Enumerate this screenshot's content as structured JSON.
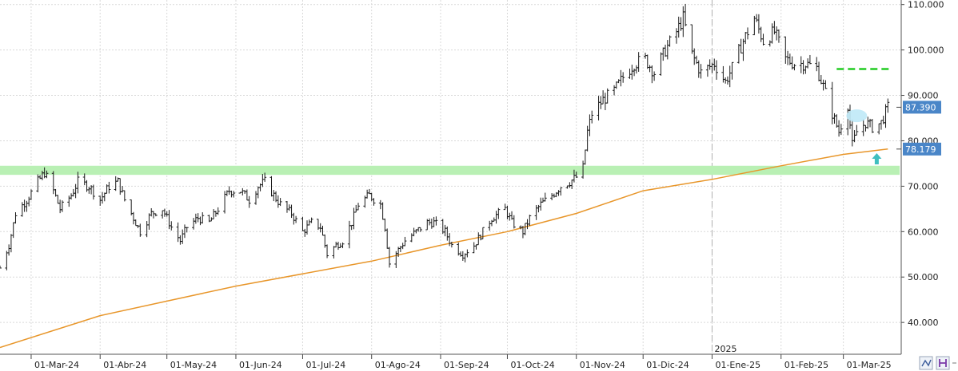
{
  "colors": {
    "background": "#ffffff",
    "grid": "#d9d9d9",
    "bars": "#1a1a1a",
    "ma_line": "#e8962a",
    "support_zone": "#b9f0b4",
    "resistance_line": "#22cc22",
    "tag_bg": "#4a86c8",
    "arrow": "#3fbfbf",
    "highlight": "#bfe9f7"
  },
  "chart_data": {
    "type": "ohlc",
    "title": "",
    "xlabel": "",
    "ylabel": "",
    "ylim": [
      33,
      111
    ],
    "yticks": [
      "110.000",
      "100.000",
      "90.000",
      "80.000",
      "70.000",
      "60.000",
      "50.000",
      "40.000"
    ],
    "x_start": "2024-02-16",
    "x_end": "2025-03-27",
    "x_ticks": [
      {
        "date": "2024-03-01",
        "label": "01-Mar-24"
      },
      {
        "date": "2024-04-01",
        "label": "01-Abr-24"
      },
      {
        "date": "2024-05-01",
        "label": "01-May-24"
      },
      {
        "date": "2024-06-01",
        "label": "01-Jun-24"
      },
      {
        "date": "2024-07-01",
        "label": "01-Jul-24"
      },
      {
        "date": "2024-08-01",
        "label": "01-Ago-24"
      },
      {
        "date": "2024-09-01",
        "label": "01-Sep-24"
      },
      {
        "date": "2024-10-01",
        "label": "01-Oct-24"
      },
      {
        "date": "2024-11-01",
        "label": "01-Nov-24"
      },
      {
        "date": "2024-12-01",
        "label": "01-Dic-24"
      },
      {
        "date": "2025-01-01",
        "label": "01-Ene-25"
      },
      {
        "date": "2025-02-01",
        "label": "01-Feb-25"
      },
      {
        "date": "2025-03-01",
        "label": "01-Mar-25"
      }
    ],
    "year_marker": {
      "date": "2025-01-01",
      "label": "2025"
    },
    "price_path": [
      [
        "2024-02-16",
        52
      ],
      [
        "2024-02-20",
        57
      ],
      [
        "2024-02-23",
        64
      ],
      [
        "2024-02-28",
        67
      ],
      [
        "2024-03-04",
        71
      ],
      [
        "2024-03-07",
        73
      ],
      [
        "2024-03-11",
        69
      ],
      [
        "2024-03-14",
        65
      ],
      [
        "2024-03-19",
        68
      ],
      [
        "2024-03-22",
        71
      ],
      [
        "2024-03-27",
        70
      ],
      [
        "2024-04-01",
        67
      ],
      [
        "2024-04-05",
        70
      ],
      [
        "2024-04-09",
        71
      ],
      [
        "2024-04-12",
        67
      ],
      [
        "2024-04-16",
        63
      ],
      [
        "2024-04-19",
        60
      ],
      [
        "2024-04-24",
        64
      ],
      [
        "2024-04-29",
        65
      ],
      [
        "2024-05-03",
        61
      ],
      [
        "2024-05-07",
        58
      ],
      [
        "2024-05-10",
        61
      ],
      [
        "2024-05-15",
        63
      ],
      [
        "2024-05-20",
        62
      ],
      [
        "2024-05-24",
        65
      ],
      [
        "2024-05-29",
        69
      ],
      [
        "2024-06-03",
        69
      ],
      [
        "2024-06-07",
        67
      ],
      [
        "2024-06-11",
        70
      ],
      [
        "2024-06-14",
        71
      ],
      [
        "2024-06-18",
        68
      ],
      [
        "2024-06-21",
        66
      ],
      [
        "2024-06-26",
        64
      ],
      [
        "2024-07-01",
        60
      ],
      [
        "2024-07-05",
        62
      ],
      [
        "2024-07-09",
        61
      ],
      [
        "2024-07-12",
        55
      ],
      [
        "2024-07-16",
        57
      ],
      [
        "2024-07-19",
        58
      ],
      [
        "2024-07-23",
        62
      ],
      [
        "2024-07-26",
        66
      ],
      [
        "2024-07-31",
        68
      ],
      [
        "2024-08-05",
        66
      ],
      [
        "2024-08-07",
        61
      ],
      [
        "2024-08-09",
        53
      ],
      [
        "2024-08-13",
        56
      ],
      [
        "2024-08-16",
        58
      ],
      [
        "2024-08-21",
        60
      ],
      [
        "2024-08-26",
        62
      ],
      [
        "2024-08-29",
        62
      ],
      [
        "2024-09-03",
        60
      ],
      [
        "2024-09-06",
        57
      ],
      [
        "2024-09-11",
        55
      ],
      [
        "2024-09-16",
        57
      ],
      [
        "2024-09-20",
        60
      ],
      [
        "2024-09-24",
        63
      ],
      [
        "2024-09-30",
        65
      ],
      [
        "2024-10-03",
        62
      ],
      [
        "2024-10-08",
        60
      ],
      [
        "2024-10-11",
        63
      ],
      [
        "2024-10-16",
        66
      ],
      [
        "2024-10-21",
        68
      ],
      [
        "2024-10-25",
        70
      ],
      [
        "2024-10-29",
        71
      ],
      [
        "2024-11-01",
        72
      ],
      [
        "2024-11-04",
        74
      ],
      [
        "2024-11-06",
        82
      ],
      [
        "2024-11-08",
        86
      ],
      [
        "2024-11-13",
        89
      ],
      [
        "2024-11-18",
        91
      ],
      [
        "2024-11-22",
        94
      ],
      [
        "2024-11-27",
        97
      ],
      [
        "2024-12-02",
        98
      ],
      [
        "2024-12-06",
        95
      ],
      [
        "2024-12-11",
        100
      ],
      [
        "2024-12-16",
        104
      ],
      [
        "2024-12-19",
        107
      ],
      [
        "2024-12-23",
        99
      ],
      [
        "2024-12-27",
        95
      ],
      [
        "2025-01-02",
        97
      ],
      [
        "2025-01-07",
        93
      ],
      [
        "2025-01-10",
        96
      ],
      [
        "2025-01-15",
        102
      ],
      [
        "2025-01-20",
        107
      ],
      [
        "2025-01-24",
        102
      ],
      [
        "2025-01-29",
        104
      ],
      [
        "2025-02-03",
        98
      ],
      [
        "2025-02-07",
        97
      ],
      [
        "2025-02-12",
        97
      ],
      [
        "2025-02-17",
        96
      ],
      [
        "2025-02-20",
        92
      ],
      [
        "2025-02-24",
        86
      ],
      [
        "2025-02-27",
        82
      ],
      [
        "2025-03-03",
        88
      ],
      [
        "2025-03-05",
        79
      ],
      [
        "2025-03-07",
        82
      ],
      [
        "2025-03-11",
        84
      ],
      [
        "2025-03-14",
        83
      ],
      [
        "2025-03-18",
        84
      ],
      [
        "2025-03-21",
        87.39
      ]
    ],
    "ma_line": [
      [
        "2024-02-16",
        34.5
      ],
      [
        "2024-04-01",
        41.5
      ],
      [
        "2024-06-01",
        48
      ],
      [
        "2024-08-01",
        53.5
      ],
      [
        "2024-09-01",
        57
      ],
      [
        "2024-10-01",
        60
      ],
      [
        "2024-11-01",
        64
      ],
      [
        "2024-12-01",
        69
      ],
      [
        "2025-01-01",
        71.5
      ],
      [
        "2025-02-01",
        74.5
      ],
      [
        "2025-03-01",
        77
      ],
      [
        "2025-03-21",
        78.18
      ]
    ],
    "support_zone": {
      "low": 72.5,
      "high": 74.5
    },
    "resistance_line": {
      "value": 95.8,
      "start": "2025-02-26",
      "end": "2025-03-21"
    },
    "price_tags": [
      {
        "label": "87.390",
        "value": 87.39
      },
      {
        "label": "78.179",
        "value": 78.18
      }
    ]
  }
}
